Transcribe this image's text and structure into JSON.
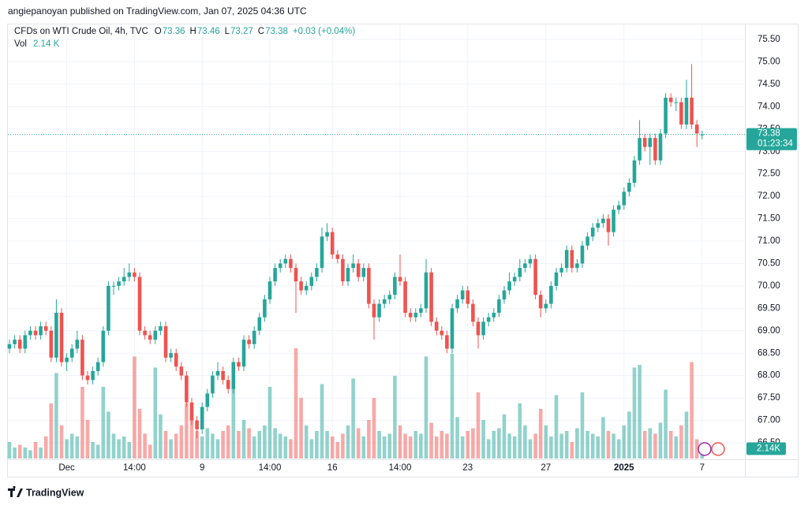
{
  "header": {
    "published": "angiepanoyan published on TradingView.com, Jan 07, 2025 04:36 UTC"
  },
  "footer": {
    "brand": "TradingView"
  },
  "chart_data": {
    "type": "candlestick",
    "symbol": "CFDs on WTI Crude Oil, 4h, TVC",
    "ohlc_keys": [
      "O",
      "H",
      "L",
      "C"
    ],
    "change_label": "+0.03 (+0.04%)",
    "volume_title": "Vol",
    "volume_label": "2.14 K",
    "volume_tag": "2.14K",
    "countdown": "01:23:34",
    "up_color": "#26a69a",
    "down_color": "#ef5350",
    "grid": true,
    "ylim": [
      66.5,
      75.5
    ],
    "yticks": [
      {
        "value": 66.5,
        "label": "66.50"
      },
      {
        "value": 67,
        "label": "67.00"
      },
      {
        "value": 67.5,
        "label": "67.50"
      },
      {
        "value": 68,
        "label": "68.00"
      },
      {
        "value": 68.5,
        "label": "68.50"
      },
      {
        "value": 69,
        "label": "69.00"
      },
      {
        "value": 69.5,
        "label": "69.50"
      },
      {
        "value": 70,
        "label": "70.00"
      },
      {
        "value": 70.5,
        "label": "70.50"
      },
      {
        "value": 71,
        "label": "71.00"
      },
      {
        "value": 71.5,
        "label": "71.50"
      },
      {
        "value": 72,
        "label": "72.00"
      },
      {
        "value": 72.5,
        "label": "72.50"
      },
      {
        "value": 73,
        "label": "73.00"
      },
      {
        "value": 73.5,
        "label": "73.50"
      },
      {
        "value": 74,
        "label": "74.00"
      },
      {
        "value": 74.5,
        "label": "74.50"
      },
      {
        "value": 75,
        "label": "75.00"
      },
      {
        "value": 75.5,
        "label": "75.50"
      }
    ],
    "categories": [
      null,
      null,
      null,
      null,
      null,
      null,
      null,
      null,
      null,
      null,
      null,
      "Dec",
      null,
      null,
      null,
      null,
      null,
      null,
      null,
      null,
      null,
      null,
      null,
      null,
      "14:00",
      null,
      null,
      null,
      null,
      null,
      null,
      null,
      null,
      null,
      null,
      null,
      null,
      "9",
      null,
      null,
      null,
      null,
      null,
      null,
      null,
      null,
      null,
      null,
      null,
      null,
      "14:00",
      null,
      null,
      null,
      null,
      null,
      null,
      null,
      null,
      null,
      null,
      null,
      "16",
      null,
      null,
      null,
      null,
      null,
      null,
      null,
      null,
      null,
      null,
      null,
      null,
      "14:00",
      null,
      null,
      null,
      null,
      null,
      null,
      null,
      null,
      null,
      null,
      null,
      null,
      "23",
      null,
      null,
      null,
      null,
      null,
      null,
      null,
      null,
      null,
      null,
      null,
      null,
      null,
      null,
      "27",
      null,
      null,
      null,
      null,
      null,
      null,
      null,
      null,
      null,
      null,
      null,
      null,
      null,
      null,
      "2025",
      null,
      null,
      null,
      null,
      null,
      null,
      null,
      null,
      null,
      null,
      null,
      null,
      null,
      null,
      "7"
    ],
    "open": [
      68.6,
      68.7,
      68.8,
      68.6,
      68.9,
      69.0,
      68.9,
      69.1,
      69.0,
      68.4,
      69.4,
      68.3,
      68.4,
      68.6,
      68.8,
      68.0,
      67.9,
      68.1,
      68.3,
      69.0,
      70.0,
      70.0,
      70.1,
      70.2,
      70.3,
      70.2,
      69.0,
      68.9,
      68.8,
      69.0,
      69.1,
      68.4,
      68.5,
      68.2,
      68.0,
      67.4,
      67.0,
      66.8,
      67.3,
      67.6,
      68.0,
      68.1,
      67.9,
      67.7,
      68.3,
      68.2,
      68.8,
      68.7,
      69.0,
      69.3,
      69.7,
      70.1,
      70.4,
      70.5,
      70.6,
      70.4,
      70.1,
      69.9,
      70.0,
      70.2,
      70.4,
      71.1,
      71.2,
      70.7,
      70.6,
      70.1,
      70.4,
      70.5,
      70.2,
      70.4,
      69.6,
      69.3,
      69.6,
      69.7,
      69.8,
      70.2,
      70.1,
      69.4,
      69.3,
      69.4,
      69.5,
      70.3,
      69.2,
      69.0,
      68.9,
      68.6,
      69.5,
      69.7,
      69.9,
      69.6,
      69.2,
      68.9,
      69.2,
      69.3,
      69.4,
      69.7,
      69.9,
      70.1,
      70.2,
      70.4,
      70.5,
      70.6,
      69.8,
      69.5,
      69.6,
      70.0,
      70.3,
      70.4,
      70.8,
      70.4,
      70.5,
      70.9,
      71.1,
      71.3,
      71.4,
      71.5,
      71.2,
      71.7,
      71.8,
      72.1,
      72.3,
      72.8,
      73.3,
      73.1,
      73.3,
      72.8,
      73.4,
      74.2,
      74.1,
      74.1,
      73.6,
      74.2,
      73.6,
      73.36
    ],
    "high": [
      68.8,
      68.9,
      68.9,
      69.0,
      69.1,
      69.1,
      69.2,
      69.2,
      69.1,
      69.7,
      69.5,
      68.5,
      68.7,
      69.0,
      68.9,
      68.1,
      68.2,
      68.4,
      69.1,
      70.1,
      70.1,
      70.2,
      70.4,
      70.5,
      70.4,
      70.3,
      69.1,
      69.0,
      69.1,
      69.2,
      69.2,
      68.6,
      68.6,
      68.3,
      68.1,
      67.5,
      67.1,
      67.4,
      67.7,
      68.1,
      68.3,
      68.2,
      68.0,
      68.4,
      68.4,
      68.9,
      68.9,
      69.1,
      69.4,
      69.8,
      70.2,
      70.5,
      70.6,
      70.7,
      70.7,
      70.5,
      70.2,
      70.1,
      70.3,
      70.5,
      71.3,
      71.4,
      71.3,
      70.8,
      70.7,
      70.5,
      70.7,
      70.6,
      70.5,
      70.5,
      69.7,
      69.7,
      69.8,
      69.9,
      70.3,
      70.7,
      70.2,
      69.5,
      69.5,
      69.6,
      70.6,
      70.4,
      69.3,
      69.1,
      69.0,
      69.6,
      69.8,
      70.0,
      70.0,
      69.7,
      69.3,
      69.3,
      69.4,
      69.5,
      69.8,
      70.0,
      70.3,
      70.3,
      70.6,
      70.6,
      70.7,
      70.7,
      69.9,
      69.7,
      70.1,
      70.4,
      70.5,
      70.9,
      70.9,
      70.6,
      71.0,
      71.2,
      71.4,
      71.5,
      71.6,
      71.6,
      71.8,
      71.9,
      72.2,
      72.4,
      72.9,
      73.7,
      73.4,
      73.4,
      73.4,
      73.5,
      74.3,
      74.3,
      74.2,
      74.2,
      74.6,
      74.95,
      73.7,
      73.46
    ],
    "low": [
      68.5,
      68.6,
      68.5,
      68.5,
      68.8,
      68.8,
      68.8,
      68.9,
      68.3,
      68.3,
      68.2,
      68.1,
      68.3,
      68.5,
      67.9,
      67.8,
      67.8,
      68.0,
      68.2,
      68.9,
      69.8,
      69.9,
      70.0,
      70.1,
      70.1,
      68.9,
      68.8,
      68.7,
      68.7,
      68.9,
      68.3,
      68.3,
      68.1,
      67.9,
      67.3,
      66.9,
      66.6,
      66.7,
      67.2,
      67.5,
      67.9,
      67.8,
      67.6,
      67.6,
      68.1,
      68.1,
      68.6,
      68.6,
      68.9,
      69.2,
      69.6,
      70.0,
      70.3,
      70.4,
      70.3,
      69.4,
      69.8,
      69.8,
      69.9,
      70.1,
      70.3,
      71.0,
      70.6,
      70.5,
      70.0,
      70.0,
      70.3,
      70.1,
      70.1,
      69.5,
      68.8,
      69.2,
      69.5,
      69.6,
      69.7,
      70.0,
      69.3,
      69.2,
      69.2,
      69.3,
      69.4,
      69.1,
      68.9,
      68.8,
      68.5,
      68.5,
      69.4,
      69.6,
      69.5,
      69.1,
      68.6,
      68.8,
      69.1,
      69.2,
      69.3,
      69.6,
      69.8,
      70.0,
      70.1,
      70.3,
      70.4,
      69.7,
      69.3,
      69.4,
      69.5,
      69.9,
      70.2,
      70.3,
      70.3,
      70.3,
      70.4,
      70.8,
      71.0,
      71.2,
      71.3,
      70.9,
      71.1,
      71.6,
      71.7,
      72.0,
      72.2,
      72.7,
      73.0,
      72.7,
      72.7,
      72.7,
      73.3,
      74.0,
      73.9,
      73.5,
      73.5,
      73.5,
      73.1,
      73.27
    ],
    "close": [
      68.7,
      68.8,
      68.6,
      68.9,
      69.0,
      68.9,
      69.1,
      69.0,
      68.4,
      69.4,
      68.3,
      68.4,
      68.6,
      68.8,
      68.0,
      67.9,
      68.1,
      68.3,
      69.0,
      70.0,
      70.0,
      70.1,
      70.2,
      70.3,
      70.2,
      69.0,
      68.9,
      68.8,
      69.0,
      69.1,
      68.4,
      68.5,
      68.2,
      68.0,
      67.4,
      67.0,
      66.8,
      67.3,
      67.6,
      68.0,
      68.1,
      67.9,
      67.7,
      68.3,
      68.2,
      68.8,
      68.7,
      69.0,
      69.3,
      69.7,
      70.1,
      70.4,
      70.5,
      70.6,
      70.4,
      70.1,
      69.9,
      70.0,
      70.2,
      70.4,
      71.1,
      71.2,
      70.7,
      70.6,
      70.1,
      70.4,
      70.5,
      70.2,
      70.4,
      69.6,
      69.3,
      69.6,
      69.7,
      69.8,
      70.2,
      70.1,
      69.4,
      69.3,
      69.4,
      69.5,
      70.3,
      69.2,
      69.0,
      68.9,
      68.6,
      69.5,
      69.7,
      69.9,
      69.6,
      69.2,
      68.9,
      69.2,
      69.3,
      69.4,
      69.7,
      69.9,
      70.1,
      70.2,
      70.4,
      70.5,
      70.6,
      69.8,
      69.5,
      69.6,
      70.0,
      70.3,
      70.4,
      70.8,
      70.4,
      70.5,
      70.9,
      71.1,
      71.3,
      71.4,
      71.5,
      71.2,
      71.7,
      71.8,
      72.1,
      72.3,
      72.8,
      73.3,
      73.1,
      73.3,
      72.8,
      73.4,
      74.2,
      74.1,
      74.1,
      73.6,
      74.2,
      73.6,
      73.4,
      73.38
    ],
    "volume": [
      6,
      4,
      5,
      4,
      3,
      6,
      4,
      8,
      20,
      31,
      12,
      7,
      9,
      8,
      26,
      14,
      6,
      5,
      26,
      17,
      9,
      7,
      8,
      6,
      37,
      18,
      9,
      5,
      33,
      16,
      10,
      7,
      9,
      12,
      20,
      15,
      10,
      8,
      11,
      9,
      7,
      10,
      12,
      26,
      10,
      14,
      11,
      8,
      10,
      12,
      26,
      11,
      9,
      8,
      7,
      40,
      22,
      12,
      7,
      10,
      27,
      10,
      8,
      6,
      9,
      12,
      29,
      11,
      8,
      14,
      22,
      10,
      8,
      9,
      30,
      12,
      9,
      8,
      10,
      9,
      37,
      13,
      8,
      10,
      9,
      38,
      15,
      8,
      10,
      11,
      24,
      14,
      7,
      10,
      11,
      16,
      9,
      8,
      20,
      12,
      7,
      9,
      18,
      12,
      8,
      23,
      9,
      10,
      6,
      11,
      24,
      10,
      9,
      8,
      15,
      10,
      9,
      7,
      12,
      17,
      33,
      34,
      10,
      11,
      9,
      13,
      25,
      10,
      8,
      12,
      17,
      35,
      7,
      2.14
    ]
  }
}
